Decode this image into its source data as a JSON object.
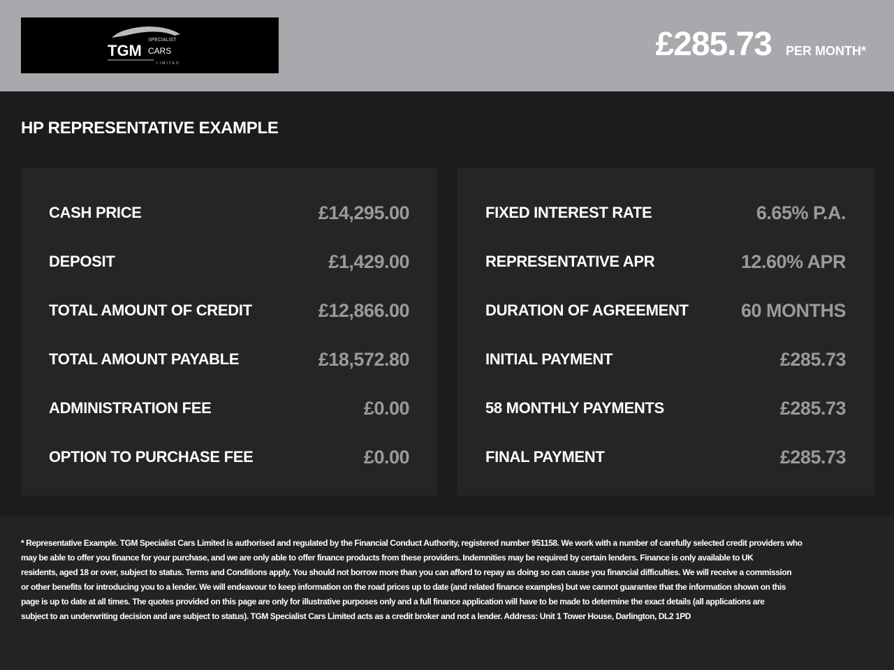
{
  "header": {
    "logo_text": "TGM SPECIALIST CARS LIMITED",
    "monthly_price": "£285.73",
    "per_month_label": "PER MONTH*"
  },
  "title": "HP REPRESENTATIVE EXAMPLE",
  "left": [
    {
      "label": "CASH PRICE",
      "value": "£14,295.00"
    },
    {
      "label": "DEPOSIT",
      "value": "£1,429.00"
    },
    {
      "label": "TOTAL AMOUNT OF CREDIT",
      "value": "£12,866.00"
    },
    {
      "label": "TOTAL AMOUNT PAYABLE",
      "value": "£18,572.80"
    },
    {
      "label": "ADMINISTRATION FEE",
      "value": "£0.00"
    },
    {
      "label": "OPTION TO PURCHASE FEE",
      "value": "£0.00"
    }
  ],
  "right": [
    {
      "label": "FIXED INTEREST RATE",
      "value": "6.65% P.A."
    },
    {
      "label": "REPRESENTATIVE APR",
      "value": "12.60% APR"
    },
    {
      "label": "DURATION OF AGREEMENT",
      "value": "60 MONTHS"
    },
    {
      "label": "INITIAL PAYMENT",
      "value": "£285.73"
    },
    {
      "label": "58 MONTHLY PAYMENTS",
      "value": "£285.73"
    },
    {
      "label": "FINAL PAYMENT",
      "value": "£285.73"
    }
  ],
  "disclaimer": [
    "* Representative Example. TGM Specialist Cars Limited  is authorised and regulated by the Financial Conduct Authority, registered number 951158. We work with a number of carefully selected credit providers who",
    "may be able to offer you finance for your purchase, and we are only able to offer finance products from these providers. Indemnities may be required by certain lenders. Finance is only available to UK",
    "residents, aged 18 or over, subject to status. Terms and Conditions apply. You should not borrow more than you can afford to repay as doing so can cause you financial difficulties. We will receive a commission",
    "or other benefits for introducing you to a lender. We will endeavour to keep information on the road prices up to date (and related finance examples) but we cannot guarantee that the information shown on this",
    "page is up to date at all times. The quotes provided on this page are only for illustrative purposes only and a full finance application will have to be made to determine the exact details (all applications are",
    "subject to an underwriting decision and are subject to status). TGM Specialist Cars Limited  acts as a credit broker and not a lender. Address: Unit 1 Tower House, Darlington, DL2 1PD"
  ]
}
